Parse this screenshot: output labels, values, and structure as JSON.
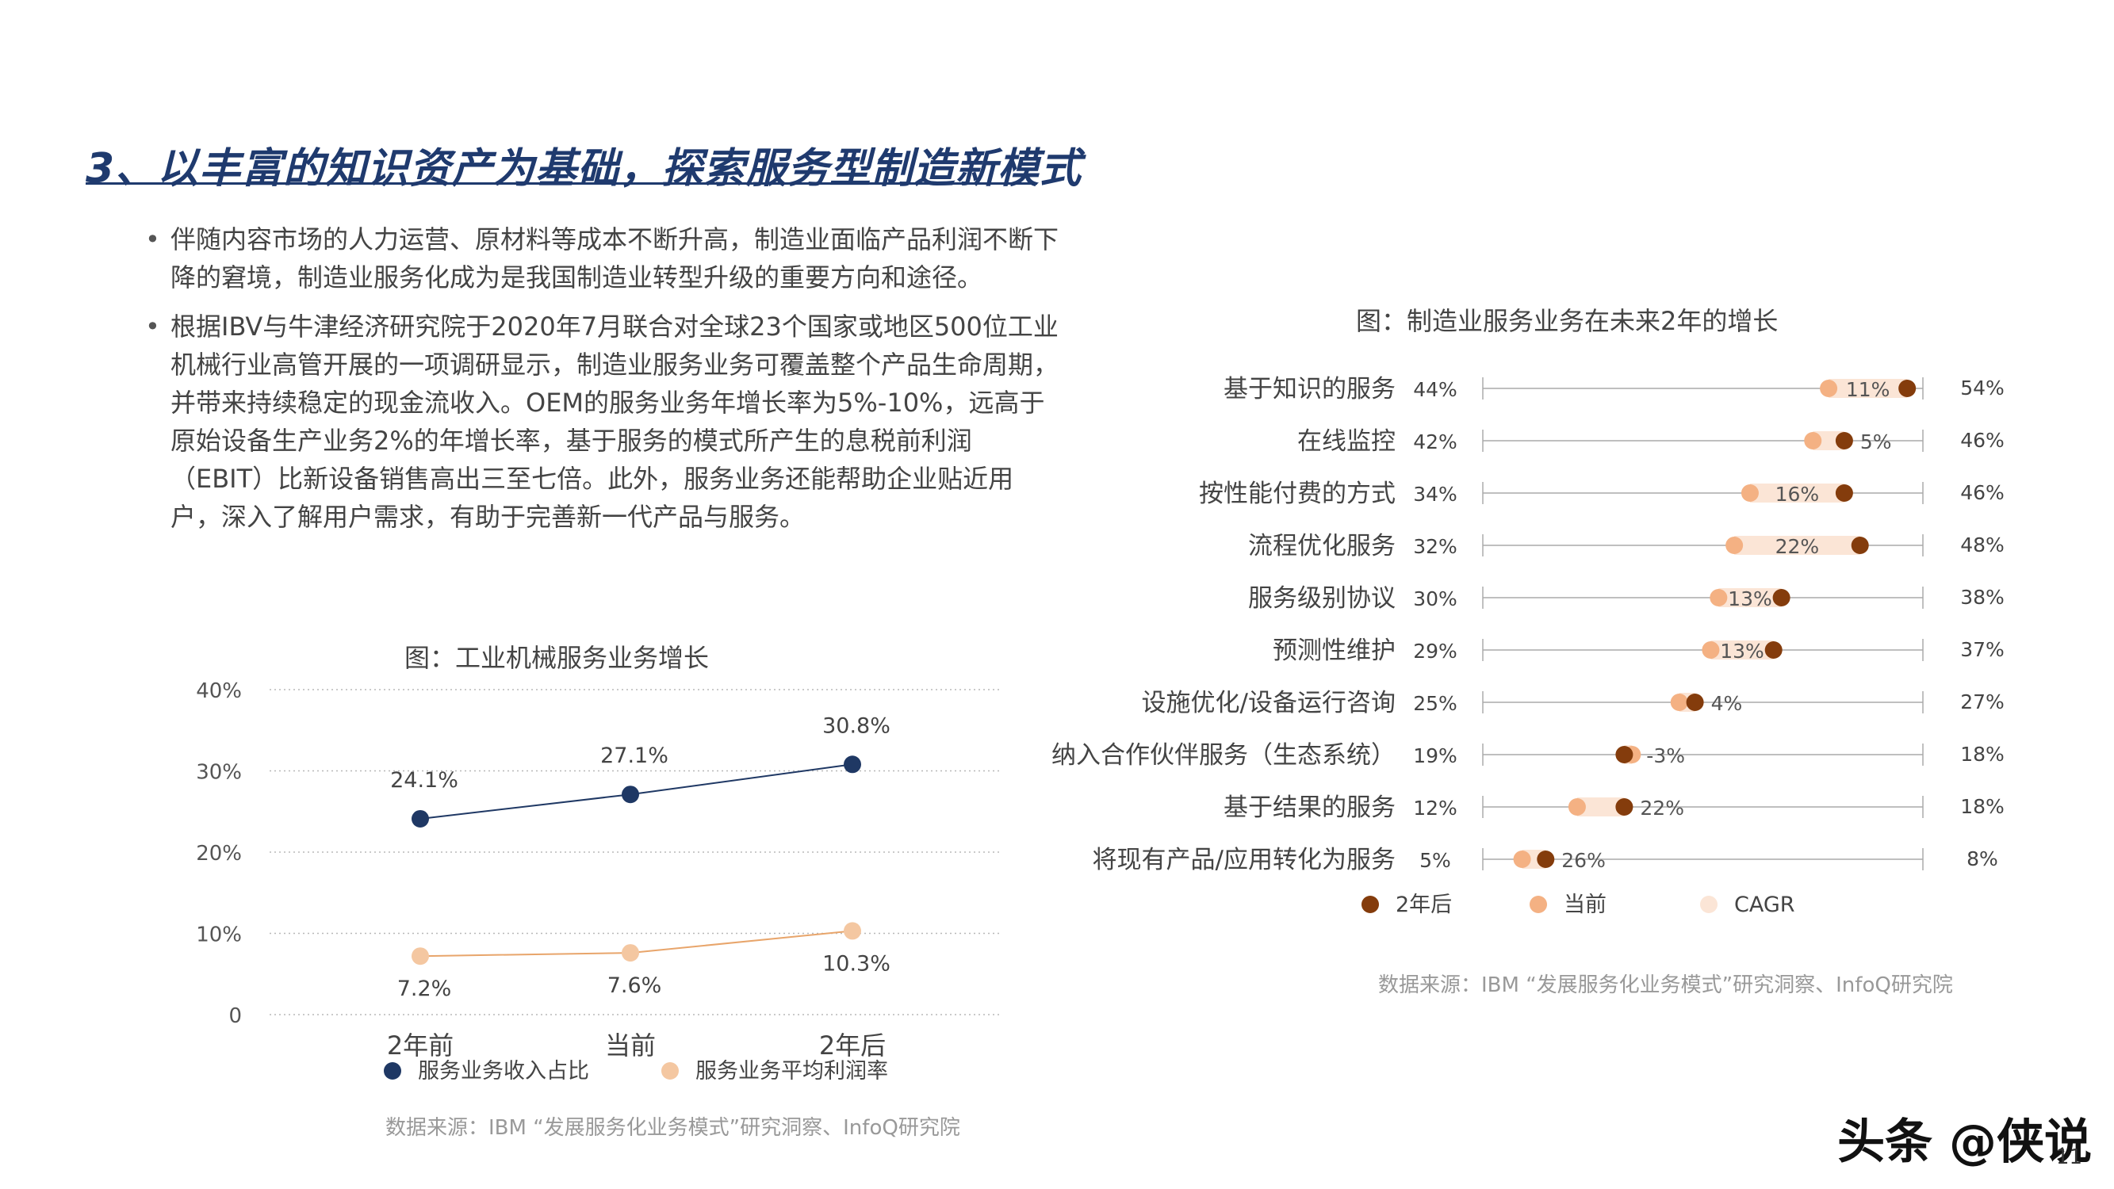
{
  "page": {
    "title": "3、以丰富的知识资产为基础，探索服务型制造新模式",
    "bullets": [
      "伴随内容市场的人力运营、原材料等成本不断升高，制造业面临产品利润不断下降的窘境，制造业服务化成为是我国制造业转型升级的重要方向和途径。",
      "根据IBV与牛津经济研究院于2020年7月联合对全球23个国家或地区500位工业机械行业高管开展的一项调研显示，制造业服务业务可覆盖整个产品生命周期，并带来持续稳定的现金流收入。OEM的服务业务年增长率为5%-10%，远高于原始设备生产业务2%的年增长率，基于服务的模式所产生的息税前利润 （EBIT）比新设备销售高出三至七倍。此外，服务业务还能帮助企业贴近用户，深入了解用户需求，有助于完善新一代产品与服务。"
    ],
    "bullet_symbol": "•",
    "watermark": "头条 @侠说",
    "page_number": "11"
  },
  "chart_data": [
    {
      "type": "line",
      "title": "图：工业机械服务业务增长",
      "categories": [
        "2年前",
        "当前",
        "2年后"
      ],
      "series": [
        {
          "name": "服务业务收入占比",
          "values": [
            24.1,
            27.1,
            30.8
          ],
          "labels": [
            "24.1%",
            "27.1%",
            "30.8%"
          ],
          "color": "#1f3864"
        },
        {
          "name": "服务业务平均利润率",
          "values": [
            7.2,
            7.6,
            10.3
          ],
          "labels": [
            "7.2%",
            "7.6%",
            "10.3%"
          ],
          "color": "#f4c7a1",
          "line_color": "#e8a56b"
        }
      ],
      "ylim": [
        0,
        40
      ],
      "yticks": [
        0,
        10,
        20,
        30,
        40
      ],
      "ytick_labels": [
        "0",
        "10%",
        "20%",
        "30%",
        "40%"
      ],
      "grid": "dotted horizontal",
      "legend": "bottom",
      "source": "数据来源：IBM “发展服务化业务模式”研究洞察、InfoQ研究院"
    },
    {
      "type": "dumbbell",
      "title": "图：制造业服务业务在未来2年的增长",
      "categories": [
        "基于知识的服务",
        "在线监控",
        "按性能付费的方式",
        "流程优化服务",
        "服务级别协议",
        "预测性维护",
        "设施优化/设备运行咨询",
        "纳入合作伙伴服务（生态系统）",
        "基于结果的服务",
        "将现有产品/应用转化为服务"
      ],
      "current": [
        44,
        42,
        34,
        32,
        30,
        29,
        25,
        19,
        12,
        5
      ],
      "after_2y": [
        54,
        46,
        46,
        48,
        38,
        37,
        27,
        18,
        18,
        8
      ],
      "current_labels": [
        "44%",
        "42%",
        "34%",
        "32%",
        "30%",
        "29%",
        "25%",
        "19%",
        "12%",
        "5%"
      ],
      "after_2y_labels": [
        "54%",
        "46%",
        "46%",
        "48%",
        "38%",
        "37%",
        "27%",
        "18%",
        "18%",
        "8%"
      ],
      "cagr_labels": [
        "11%",
        "5%",
        "16%",
        "22%",
        "13%",
        "13%",
        "4%",
        "-3%",
        "22%",
        "26%"
      ],
      "legend": [
        "2年后",
        "当前",
        "CAGR"
      ],
      "colors": {
        "after_2y": "#843c0c",
        "current": "#f4b183",
        "cagr": "#fbe5d6",
        "axis": "#aaaaaa"
      },
      "source": "数据来源：IBM “发展服务化业务模式”研究洞察、InfoQ研究院"
    }
  ]
}
